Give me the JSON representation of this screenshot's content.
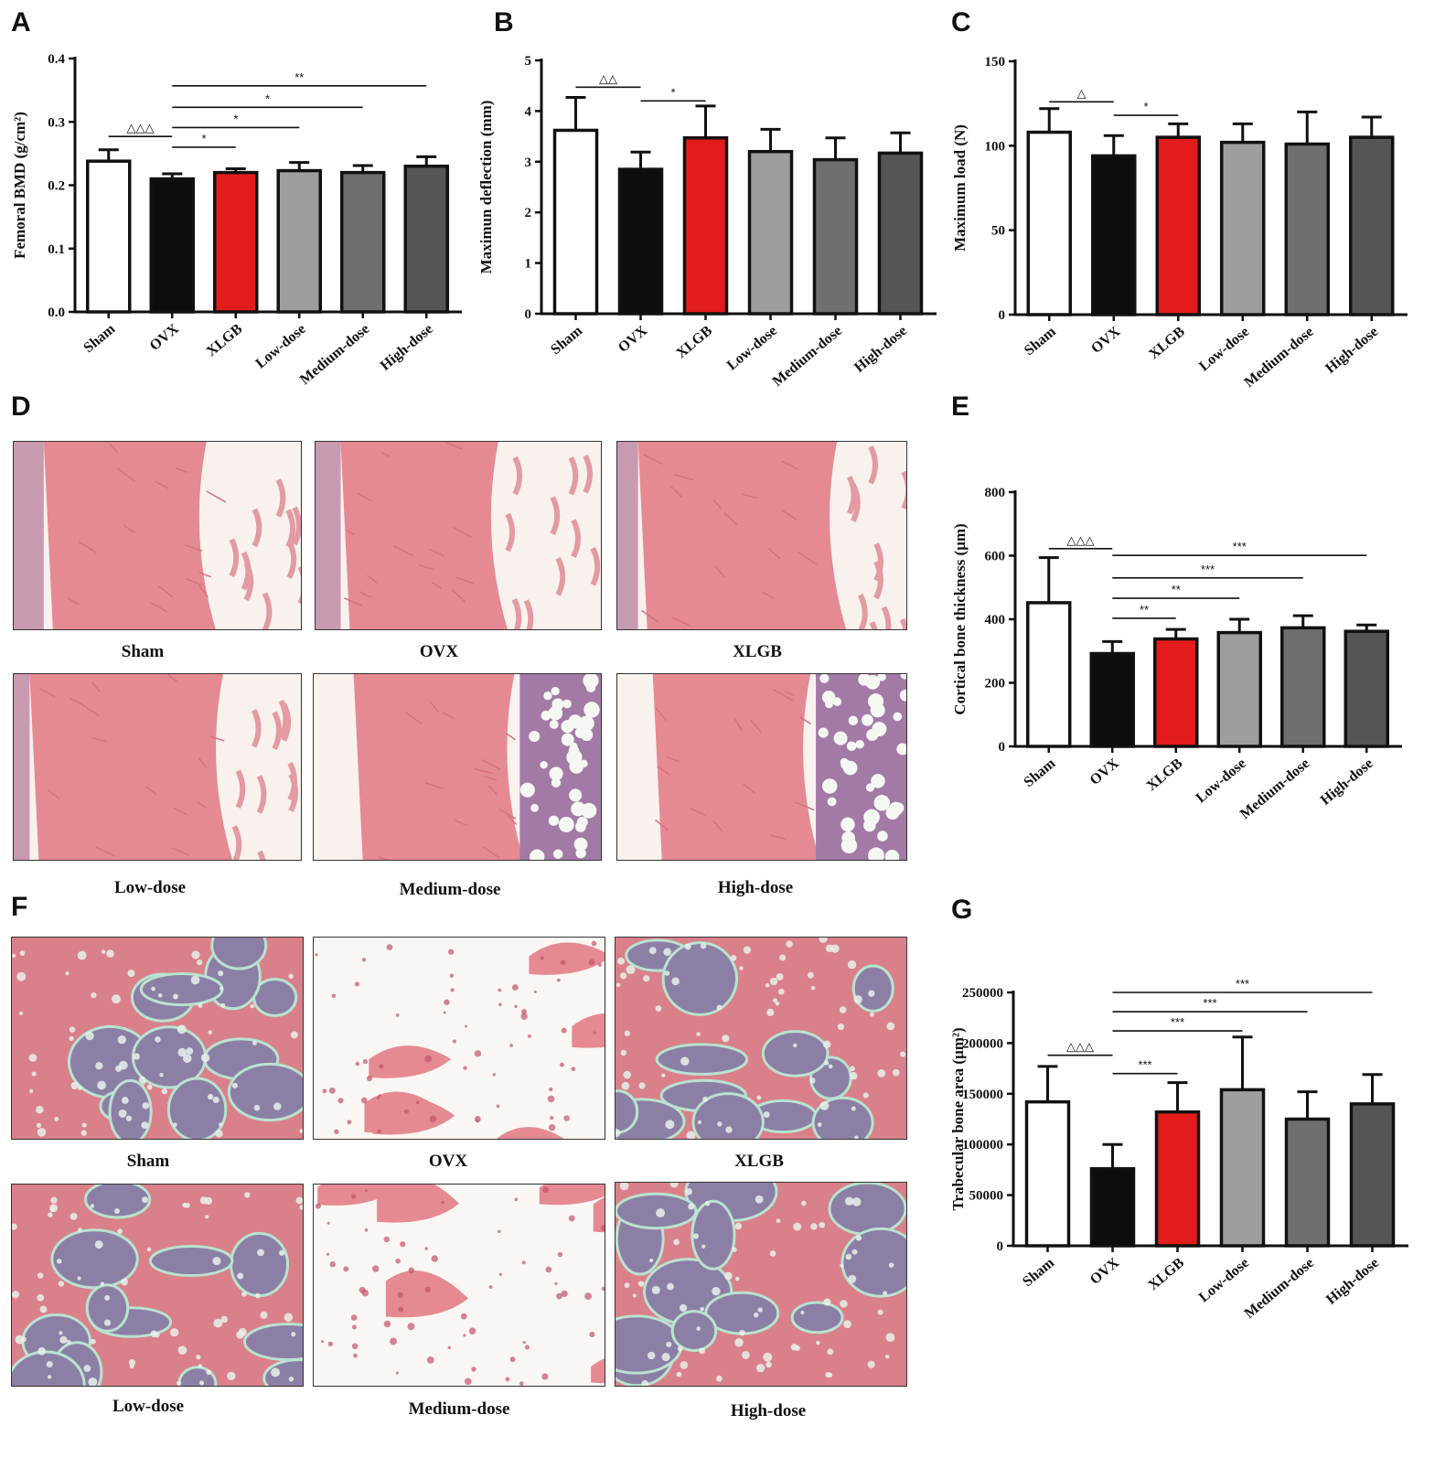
{
  "panel_letters": {
    "A": "A",
    "B": "B",
    "C": "C",
    "D": "D",
    "E": "E",
    "F": "F",
    "G": "G"
  },
  "colors": {
    "sham": "#ffffff",
    "ovx": "#0d0d0d",
    "xlgb": "#e41b1b",
    "low": "#9e9e9e",
    "medium": "#6f6f6f",
    "high": "#555555"
  },
  "chart_data": [
    {
      "id": "A",
      "type": "bar",
      "categories": [
        "Sham",
        "OVX",
        "XLGB",
        "Low-dose",
        "Medium-dose",
        "High-dose"
      ],
      "values": [
        0.238,
        0.21,
        0.22,
        0.223,
        0.22,
        0.23
      ],
      "errors": [
        0.018,
        0.008,
        0.006,
        0.013,
        0.011,
        0.015
      ],
      "ylabel": "Femoral BMD (g/cm²)",
      "ylim": [
        0,
        0.4
      ],
      "yticks": [
        "0.0",
        "0.1",
        "0.2",
        "0.3",
        "0.4"
      ],
      "annotations": [
        {
          "from": 0,
          "to": 1,
          "y": 0.277,
          "label": "△△△"
        },
        {
          "from": 1,
          "to": 2,
          "y": 0.26,
          "label": "*"
        },
        {
          "from": 1,
          "to": 3,
          "y": 0.291,
          "label": "*"
        },
        {
          "from": 1,
          "to": 4,
          "y": 0.323,
          "label": "*"
        },
        {
          "from": 1,
          "to": 5,
          "y": 0.357,
          "label": "**"
        }
      ]
    },
    {
      "id": "B",
      "type": "bar",
      "categories": [
        "Sham",
        "OVX",
        "XLGB",
        "Low-dose",
        "Medium-dose",
        "High-dose"
      ],
      "values": [
        3.62,
        2.85,
        3.47,
        3.2,
        3.04,
        3.17
      ],
      "errors": [
        0.65,
        0.34,
        0.63,
        0.44,
        0.43,
        0.4
      ],
      "ylabel": "Maximun deflection (mm)",
      "ylim": [
        0,
        5
      ],
      "yticks": [
        "0",
        "1",
        "2",
        "3",
        "4",
        "5"
      ],
      "annotations": [
        {
          "from": 0,
          "to": 1,
          "y": 4.47,
          "label": "△△"
        },
        {
          "from": 1,
          "to": 2,
          "y": 4.2,
          "label": "*"
        }
      ]
    },
    {
      "id": "C",
      "type": "bar",
      "categories": [
        "Sham",
        "OVX",
        "XLGB",
        "Low-dose",
        "Medium-dose",
        "High-dose"
      ],
      "values": [
        108,
        94,
        105,
        102,
        101,
        105
      ],
      "errors": [
        14,
        12,
        8,
        11,
        19,
        12
      ],
      "ylabel": "Maximum load (N)",
      "ylim": [
        0,
        150
      ],
      "yticks": [
        "0",
        "50",
        "100",
        "150"
      ],
      "annotations": [
        {
          "from": 0,
          "to": 1,
          "y": 126,
          "label": "△"
        },
        {
          "from": 1,
          "to": 2,
          "y": 118,
          "label": "*"
        }
      ]
    },
    {
      "id": "E",
      "type": "bar",
      "categories": [
        "Sham",
        "OVX",
        "XLGB",
        "Low-dose",
        "Medium-dose",
        "High-dose"
      ],
      "values": [
        452,
        292,
        338,
        358,
        373,
        362
      ],
      "errors": [
        142,
        38,
        30,
        42,
        38,
        20
      ],
      "ylabel": "Cortical bone thickness (μm)",
      "ylim": [
        0,
        800
      ],
      "yticks": [
        "0",
        "200",
        "400",
        "600",
        "800"
      ],
      "annotations": [
        {
          "from": 0,
          "to": 1,
          "y": 622,
          "label": "△△△"
        },
        {
          "from": 1,
          "to": 2,
          "y": 403,
          "label": "**"
        },
        {
          "from": 1,
          "to": 3,
          "y": 466,
          "label": "**"
        },
        {
          "from": 1,
          "to": 4,
          "y": 530,
          "label": "***"
        },
        {
          "from": 1,
          "to": 5,
          "y": 601,
          "label": "***"
        }
      ]
    },
    {
      "id": "G",
      "type": "bar",
      "categories": [
        "Sham",
        "OVX",
        "XLGB",
        "Low-dose",
        "Medium-dose",
        "High-dose"
      ],
      "values": [
        142000,
        76000,
        132000,
        154000,
        125000,
        140000
      ],
      "errors": [
        35000,
        24000,
        29000,
        52000,
        27000,
        29000
      ],
      "ylabel": "Trabecular bone area (μm²)",
      "ylim": [
        0,
        250000
      ],
      "yticks": [
        "0",
        "50000",
        "100000",
        "150000",
        "200000",
        "250000"
      ],
      "annotations": [
        {
          "from": 0,
          "to": 1,
          "y": 188000,
          "label": "△△△"
        },
        {
          "from": 1,
          "to": 2,
          "y": 170000,
          "label": "***"
        },
        {
          "from": 1,
          "to": 3,
          "y": 212000,
          "label": "***"
        },
        {
          "from": 1,
          "to": 4,
          "y": 231000,
          "label": "***"
        },
        {
          "from": 1,
          "to": 5,
          "y": 250000,
          "label": "***"
        }
      ]
    }
  ],
  "histology": {
    "D": {
      "captions": [
        "Sham",
        "OVX",
        "XLGB",
        "Low-dose",
        "Medium-dose",
        "High-dose"
      ]
    },
    "F": {
      "captions": [
        "Sham",
        "OVX",
        "XLGB",
        "Low-dose",
        "Medium-dose",
        "High-dose"
      ]
    }
  }
}
